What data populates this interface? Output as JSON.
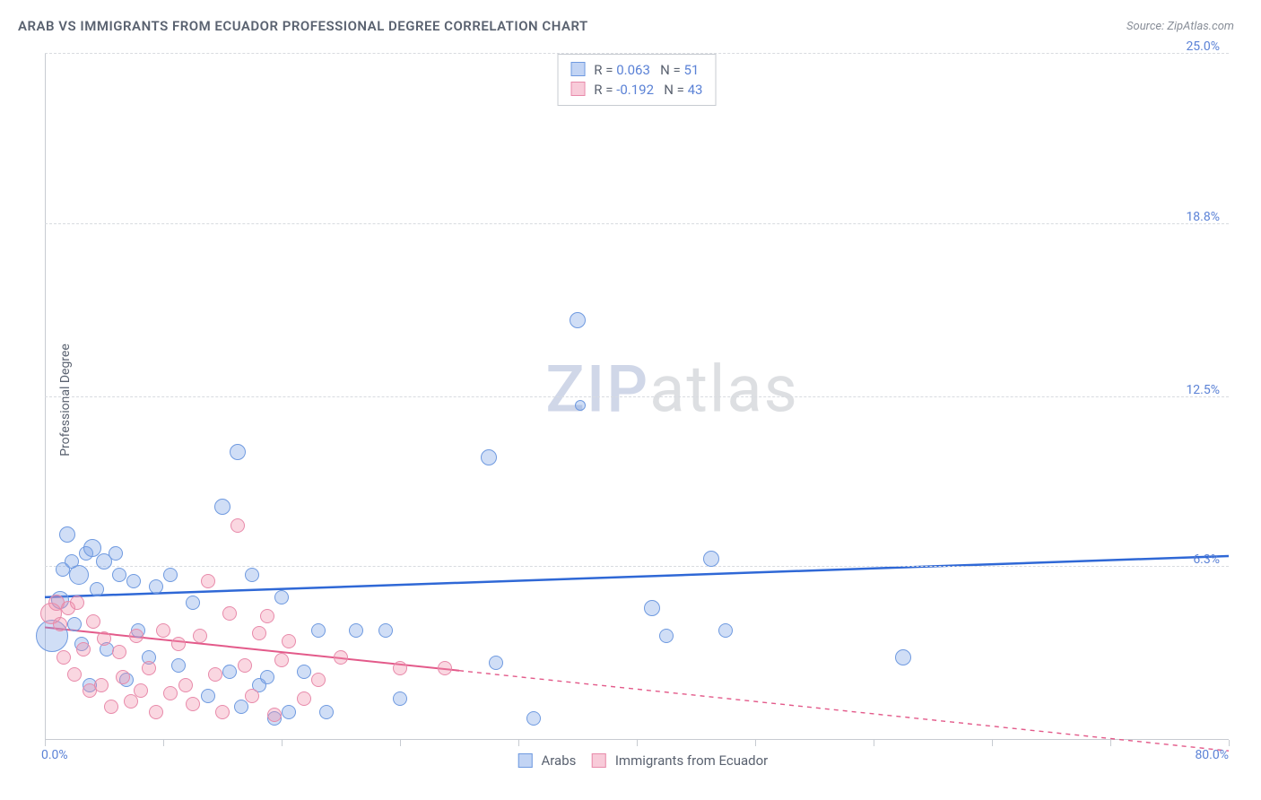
{
  "title": "ARAB VS IMMIGRANTS FROM ECUADOR PROFESSIONAL DEGREE CORRELATION CHART",
  "source": "Source: ZipAtlas.com",
  "ylabel": "Professional Degree",
  "watermark": {
    "left": "ZIP",
    "right": "atlas"
  },
  "chart": {
    "type": "scatter",
    "xlim": [
      0,
      80
    ],
    "ylim": [
      0,
      25
    ],
    "yticks": [
      {
        "v": 6.3,
        "label": "6.3%"
      },
      {
        "v": 12.5,
        "label": "12.5%"
      },
      {
        "v": 18.8,
        "label": "18.8%"
      },
      {
        "v": 25.0,
        "label": "25.0%"
      }
    ],
    "xticks": [
      0,
      8,
      16,
      24,
      32,
      40,
      48,
      56,
      64,
      72,
      80
    ],
    "xlim_labels": {
      "min": "0.0%",
      "max": "80.0%"
    },
    "background_color": "#ffffff",
    "grid_color": "#d8dbe0",
    "axis_color": "#c7cbd1",
    "tick_label_color": "#5b82d6"
  },
  "series": [
    {
      "id": "arabs",
      "label": "Arabs",
      "fill": "rgba(120,160,230,0.35)",
      "stroke": "#6f9ae0",
      "swatch_fill": "rgba(120,160,230,0.45)",
      "swatch_stroke": "#6f9ae0",
      "trend": {
        "color": "#2f68d6",
        "width": 2.5,
        "y0": 5.2,
        "y1": 6.7,
        "x_solid_end": 80,
        "dash": "none"
      },
      "stats": {
        "R_label": "R",
        "R": "0.063",
        "N_label": "N",
        "N": "51"
      },
      "points": [
        {
          "x": 0.5,
          "y": 3.8,
          "r": 18
        },
        {
          "x": 1.0,
          "y": 5.1,
          "r": 10
        },
        {
          "x": 1.2,
          "y": 6.2,
          "r": 8
        },
        {
          "x": 1.5,
          "y": 7.5,
          "r": 9
        },
        {
          "x": 2.0,
          "y": 4.2,
          "r": 8
        },
        {
          "x": 2.3,
          "y": 6.0,
          "r": 11
        },
        {
          "x": 2.8,
          "y": 6.8,
          "r": 8
        },
        {
          "x": 3.0,
          "y": 2.0,
          "r": 8
        },
        {
          "x": 3.2,
          "y": 7.0,
          "r": 10
        },
        {
          "x": 3.5,
          "y": 5.5,
          "r": 8
        },
        {
          "x": 4.0,
          "y": 6.5,
          "r": 9
        },
        {
          "x": 4.2,
          "y": 3.3,
          "r": 8
        },
        {
          "x": 5.0,
          "y": 6.0,
          "r": 8
        },
        {
          "x": 5.5,
          "y": 2.2,
          "r": 8
        },
        {
          "x": 6.0,
          "y": 5.8,
          "r": 8
        },
        {
          "x": 6.3,
          "y": 4.0,
          "r": 8
        },
        {
          "x": 7.0,
          "y": 3.0,
          "r": 8
        },
        {
          "x": 7.5,
          "y": 5.6,
          "r": 8
        },
        {
          "x": 8.5,
          "y": 6.0,
          "r": 8
        },
        {
          "x": 9.0,
          "y": 2.7,
          "r": 8
        },
        {
          "x": 10.0,
          "y": 5.0,
          "r": 8
        },
        {
          "x": 11.0,
          "y": 1.6,
          "r": 8
        },
        {
          "x": 12.0,
          "y": 8.5,
          "r": 9
        },
        {
          "x": 12.5,
          "y": 2.5,
          "r": 8
        },
        {
          "x": 13.0,
          "y": 10.5,
          "r": 9
        },
        {
          "x": 13.3,
          "y": 1.2,
          "r": 8
        },
        {
          "x": 14.0,
          "y": 6.0,
          "r": 8
        },
        {
          "x": 14.5,
          "y": 2.0,
          "r": 8
        },
        {
          "x": 15.0,
          "y": 2.3,
          "r": 8
        },
        {
          "x": 15.5,
          "y": 0.8,
          "r": 8
        },
        {
          "x": 16.0,
          "y": 5.2,
          "r": 8
        },
        {
          "x": 16.5,
          "y": 1.0,
          "r": 8
        },
        {
          "x": 17.5,
          "y": 2.5,
          "r": 8
        },
        {
          "x": 18.5,
          "y": 4.0,
          "r": 8
        },
        {
          "x": 19.0,
          "y": 1.0,
          "r": 8
        },
        {
          "x": 21.0,
          "y": 4.0,
          "r": 8
        },
        {
          "x": 23.0,
          "y": 4.0,
          "r": 8
        },
        {
          "x": 24.0,
          "y": 1.5,
          "r": 8
        },
        {
          "x": 30.0,
          "y": 10.3,
          "r": 9
        },
        {
          "x": 30.5,
          "y": 2.8,
          "r": 8
        },
        {
          "x": 33.0,
          "y": 0.8,
          "r": 8
        },
        {
          "x": 36.0,
          "y": 15.3,
          "r": 9
        },
        {
          "x": 36.2,
          "y": 12.2,
          "r": 6
        },
        {
          "x": 41.0,
          "y": 4.8,
          "r": 9
        },
        {
          "x": 42.0,
          "y": 3.8,
          "r": 8
        },
        {
          "x": 45.0,
          "y": 6.6,
          "r": 9
        },
        {
          "x": 46.0,
          "y": 4.0,
          "r": 8
        },
        {
          "x": 58.0,
          "y": 3.0,
          "r": 9
        },
        {
          "x": 2.5,
          "y": 3.5,
          "r": 8
        },
        {
          "x": 4.8,
          "y": 6.8,
          "r": 8
        },
        {
          "x": 1.8,
          "y": 6.5,
          "r": 8
        }
      ]
    },
    {
      "id": "ecuador",
      "label": "Immigrants from Ecuador",
      "fill": "rgba(240,140,170,0.35)",
      "stroke": "#e88aaa",
      "swatch_fill": "rgba(240,140,170,0.45)",
      "swatch_stroke": "#e88aaa",
      "trend": {
        "color": "#e35a8a",
        "width": 2,
        "y0": 4.1,
        "y1": -0.4,
        "x_solid_end": 28,
        "dash": "5,5"
      },
      "stats": {
        "R_label": "R",
        "R": "-0.192",
        "N_label": "N",
        "N": "43"
      },
      "points": [
        {
          "x": 0.4,
          "y": 4.6,
          "r": 12
        },
        {
          "x": 0.8,
          "y": 5.0,
          "r": 9
        },
        {
          "x": 1.0,
          "y": 4.2,
          "r": 8
        },
        {
          "x": 1.3,
          "y": 3.0,
          "r": 8
        },
        {
          "x": 1.6,
          "y": 4.8,
          "r": 8
        },
        {
          "x": 2.0,
          "y": 2.4,
          "r": 8
        },
        {
          "x": 2.2,
          "y": 5.0,
          "r": 8
        },
        {
          "x": 2.6,
          "y": 3.3,
          "r": 8
        },
        {
          "x": 3.0,
          "y": 1.8,
          "r": 8
        },
        {
          "x": 3.3,
          "y": 4.3,
          "r": 8
        },
        {
          "x": 3.8,
          "y": 2.0,
          "r": 8
        },
        {
          "x": 4.0,
          "y": 3.7,
          "r": 8
        },
        {
          "x": 4.5,
          "y": 1.2,
          "r": 8
        },
        {
          "x": 5.0,
          "y": 3.2,
          "r": 8
        },
        {
          "x": 5.3,
          "y": 2.3,
          "r": 8
        },
        {
          "x": 5.8,
          "y": 1.4,
          "r": 8
        },
        {
          "x": 6.2,
          "y": 3.8,
          "r": 8
        },
        {
          "x": 6.5,
          "y": 1.8,
          "r": 8
        },
        {
          "x": 7.0,
          "y": 2.6,
          "r": 8
        },
        {
          "x": 7.5,
          "y": 1.0,
          "r": 8
        },
        {
          "x": 8.0,
          "y": 4.0,
          "r": 8
        },
        {
          "x": 8.5,
          "y": 1.7,
          "r": 8
        },
        {
          "x": 9.0,
          "y": 3.5,
          "r": 8
        },
        {
          "x": 9.5,
          "y": 2.0,
          "r": 8
        },
        {
          "x": 10.0,
          "y": 1.3,
          "r": 8
        },
        {
          "x": 10.5,
          "y": 3.8,
          "r": 8
        },
        {
          "x": 11.0,
          "y": 5.8,
          "r": 8
        },
        {
          "x": 11.5,
          "y": 2.4,
          "r": 8
        },
        {
          "x": 12.0,
          "y": 1.0,
          "r": 8
        },
        {
          "x": 12.5,
          "y": 4.6,
          "r": 8
        },
        {
          "x": 13.0,
          "y": 7.8,
          "r": 8
        },
        {
          "x": 13.5,
          "y": 2.7,
          "r": 8
        },
        {
          "x": 14.0,
          "y": 1.6,
          "r": 8
        },
        {
          "x": 14.5,
          "y": 3.9,
          "r": 8
        },
        {
          "x": 15.0,
          "y": 4.5,
          "r": 8
        },
        {
          "x": 15.5,
          "y": 0.9,
          "r": 8
        },
        {
          "x": 16.0,
          "y": 2.9,
          "r": 8
        },
        {
          "x": 16.5,
          "y": 3.6,
          "r": 8
        },
        {
          "x": 17.5,
          "y": 1.5,
          "r": 8
        },
        {
          "x": 18.5,
          "y": 2.2,
          "r": 8
        },
        {
          "x": 20.0,
          "y": 3.0,
          "r": 8
        },
        {
          "x": 24.0,
          "y": 2.6,
          "r": 8
        },
        {
          "x": 27.0,
          "y": 2.6,
          "r": 8
        }
      ]
    }
  ],
  "legend_bottom": [
    {
      "series": 0
    },
    {
      "series": 1
    }
  ]
}
